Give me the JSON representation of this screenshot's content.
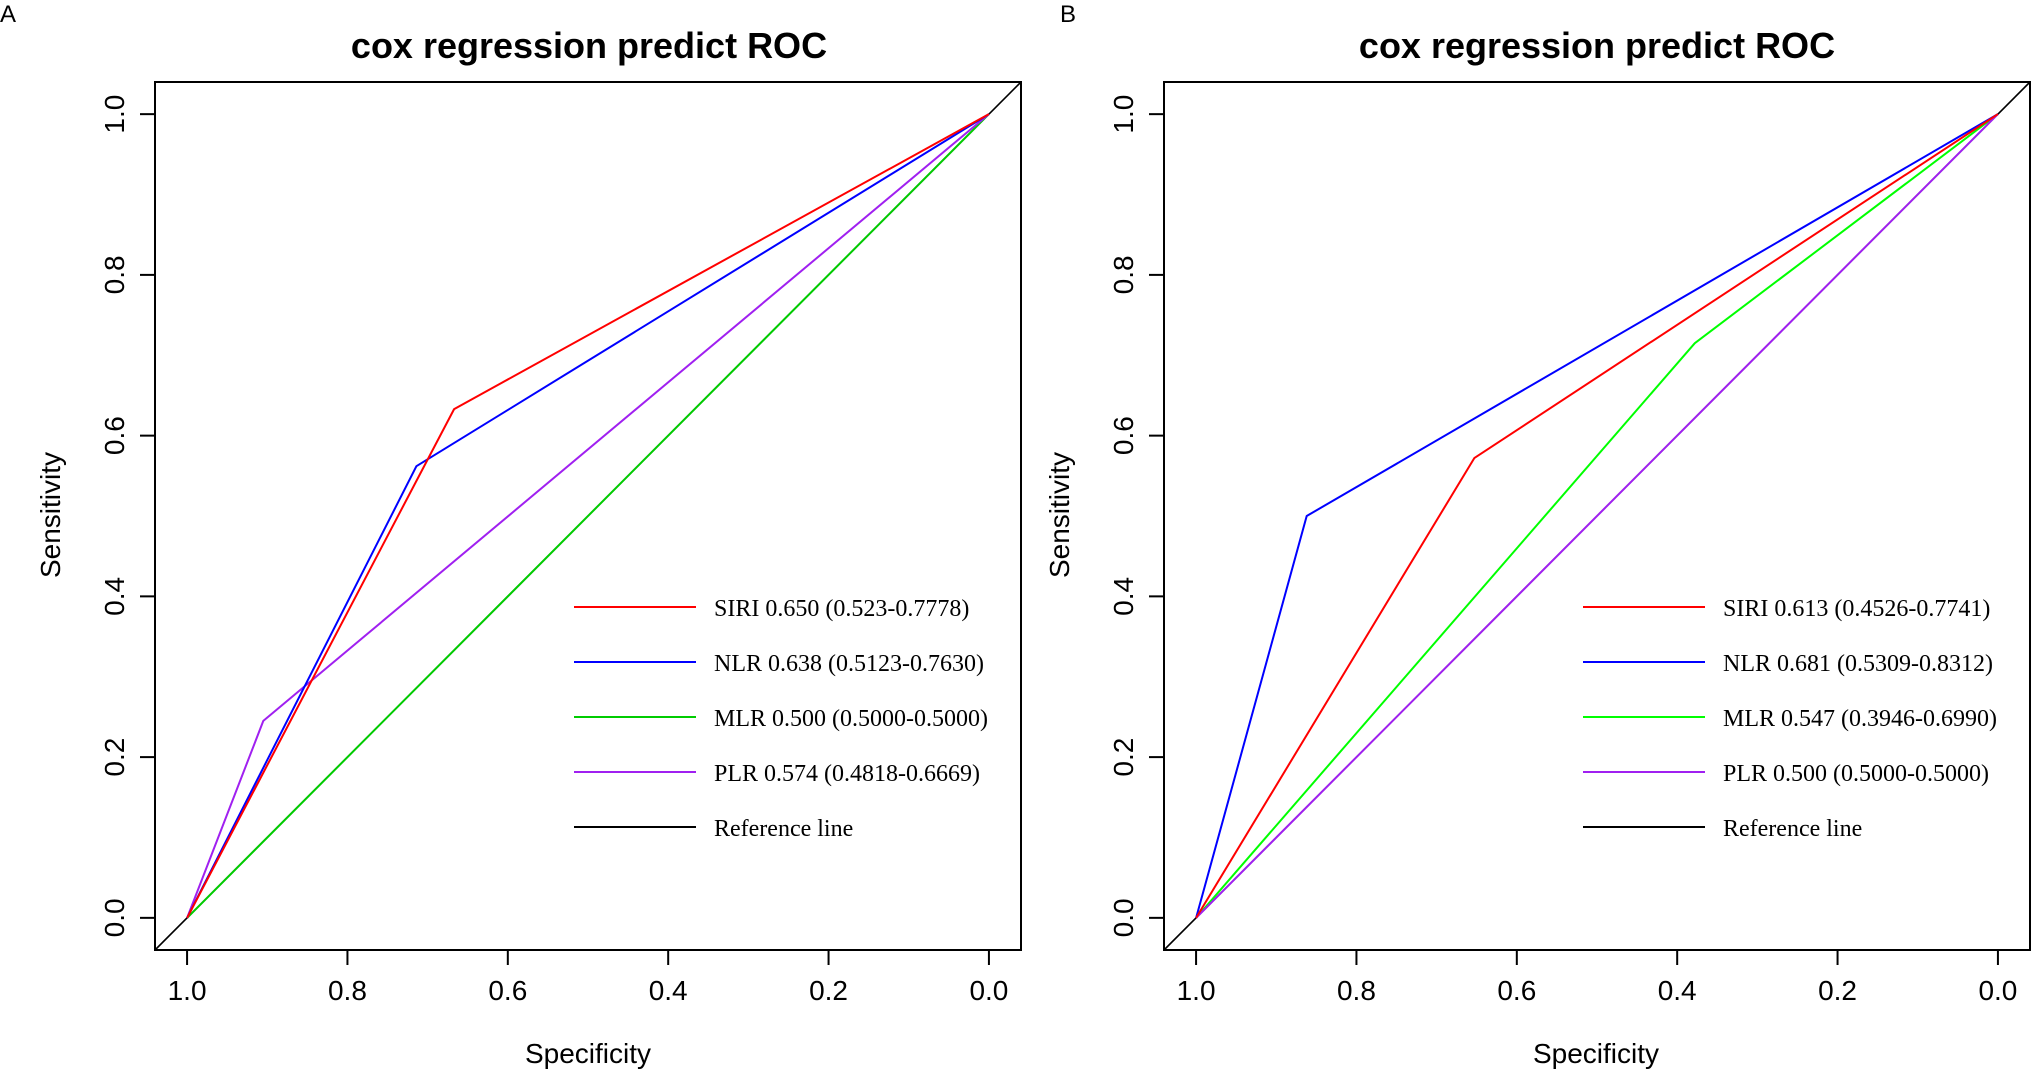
{
  "chart_data": [
    {
      "panel": "A",
      "type": "line",
      "title": "cox regression predict ROC",
      "xlabel": "Specificity",
      "ylabel": "Sensitivity",
      "xlim": [
        1.04,
        -0.04
      ],
      "ylim": [
        -0.04,
        1.04
      ],
      "xticks": [
        1.0,
        0.8,
        0.6,
        0.4,
        0.2,
        0.0
      ],
      "xtick_labels": [
        "1.0",
        "0.8",
        "0.6",
        "0.4",
        "0.2",
        "0.0"
      ],
      "yticks": [
        0.0,
        0.2,
        0.4,
        0.6,
        0.8,
        1.0
      ],
      "ytick_labels": [
        "0.0",
        "0.2",
        "0.4",
        "0.6",
        "0.8",
        "1.0"
      ],
      "series": [
        {
          "name": "SIRI",
          "label": "SIRI 0.650 (0.523-0.7778)",
          "color": "#ff0000",
          "points": [
            [
              1.0,
              0.0
            ],
            [
              0.667,
              0.633
            ],
            [
              0.0,
              1.0
            ]
          ]
        },
        {
          "name": "NLR",
          "label": "NLR 0.638 (0.5123-0.7630)",
          "color": "#0000ff",
          "points": [
            [
              1.0,
              0.0
            ],
            [
              0.714,
              0.562
            ],
            [
              0.0,
              1.0
            ]
          ]
        },
        {
          "name": "MLR",
          "label": "MLR 0.500 (0.5000-0.5000)",
          "color": "#00cc00",
          "points": [
            [
              1.0,
              0.0
            ],
            [
              0.0,
              1.0
            ]
          ]
        },
        {
          "name": "PLR",
          "label": "PLR 0.574 (0.4818-0.6669)",
          "color": "#a020f0",
          "points": [
            [
              1.0,
              0.0
            ],
            [
              0.905,
              0.245
            ],
            [
              0.0,
              1.0
            ]
          ]
        },
        {
          "name": "Reference line",
          "label": "Reference line",
          "color": "#000000",
          "points": [
            [
              1.04,
              -0.04
            ],
            [
              -0.04,
              1.04
            ]
          ]
        }
      ]
    },
    {
      "panel": "B",
      "type": "line",
      "title": "cox regression predict ROC",
      "xlabel": "Specificity",
      "ylabel": "Sensitivity",
      "xlim": [
        1.04,
        -0.04
      ],
      "ylim": [
        -0.04,
        1.04
      ],
      "xticks": [
        1.0,
        0.8,
        0.6,
        0.4,
        0.2,
        0.0
      ],
      "xtick_labels": [
        "1.0",
        "0.8",
        "0.6",
        "0.4",
        "0.2",
        "0.0"
      ],
      "yticks": [
        0.0,
        0.2,
        0.4,
        0.6,
        0.8,
        1.0
      ],
      "ytick_labels": [
        "0.0",
        "0.2",
        "0.4",
        "0.6",
        "0.8",
        "1.0"
      ],
      "series": [
        {
          "name": "SIRI",
          "label": "SIRI 0.613 (0.4526-0.7741)",
          "color": "#ff0000",
          "points": [
            [
              1.0,
              0.0
            ],
            [
              0.653,
              0.572
            ],
            [
              0.0,
              1.0
            ]
          ]
        },
        {
          "name": "NLR",
          "label": "NLR 0.681 (0.5309-0.8312)",
          "color": "#0000ff",
          "points": [
            [
              1.0,
              0.0
            ],
            [
              0.862,
              0.5
            ],
            [
              0.0,
              1.0
            ]
          ]
        },
        {
          "name": "MLR",
          "label": "MLR 0.547 (0.3946-0.6990)",
          "color": "#00ff00",
          "points": [
            [
              1.0,
              0.0
            ],
            [
              0.378,
              0.715
            ],
            [
              0.0,
              1.0
            ]
          ]
        },
        {
          "name": "PLR",
          "label": "PLR 0.500 (0.5000-0.5000)",
          "color": "#a020f0",
          "points": [
            [
              1.0,
              0.0
            ],
            [
              0.0,
              1.0
            ]
          ]
        },
        {
          "name": "Reference line",
          "label": "Reference line",
          "color": "#000000",
          "points": [
            [
              1.04,
              -0.04
            ],
            [
              -0.04,
              1.04
            ]
          ]
        }
      ]
    }
  ]
}
